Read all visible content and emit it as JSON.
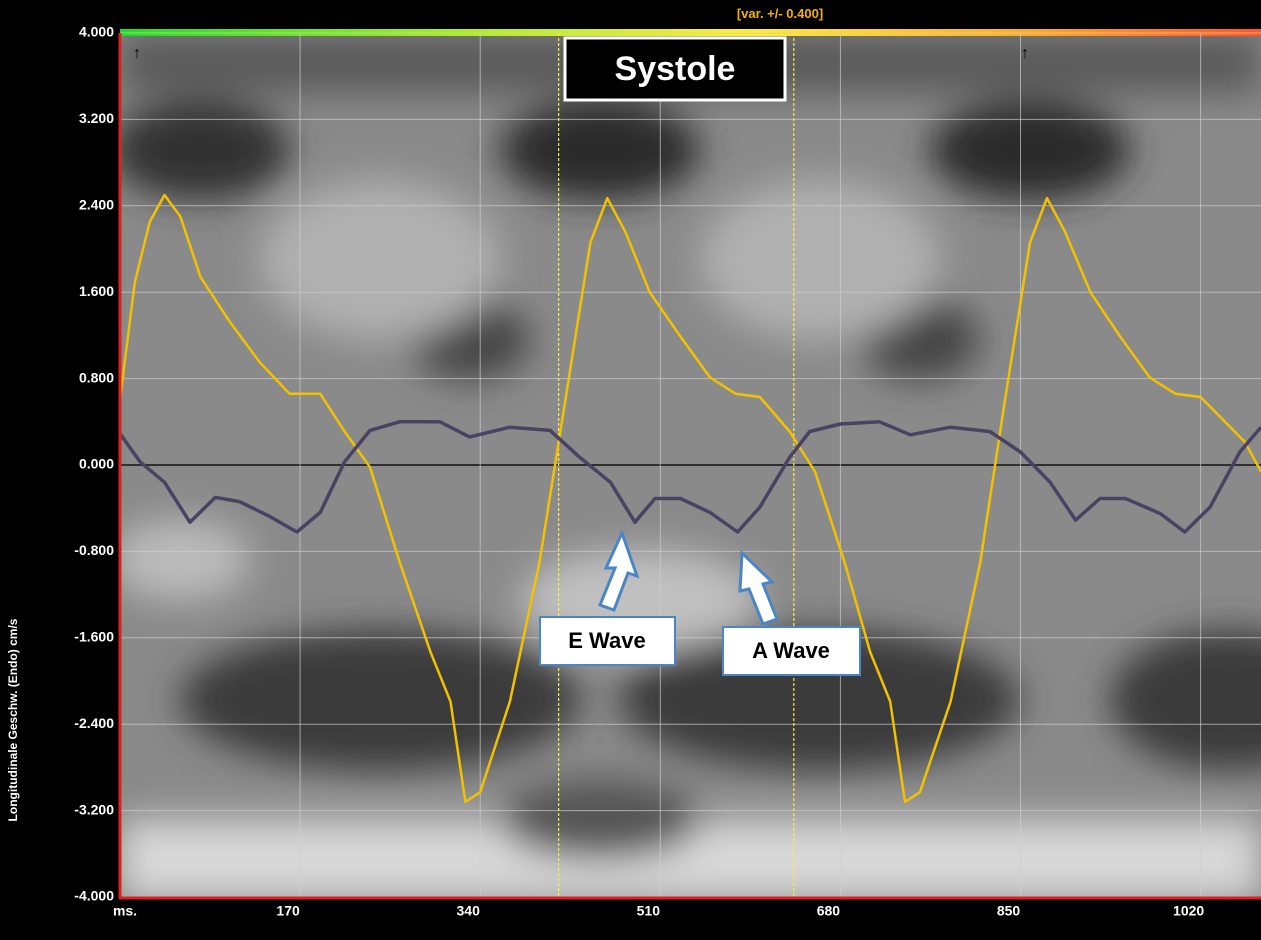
{
  "chart_data": {
    "type": "line",
    "y_label": "Longitudinale Geschw. (Endo)  cm/s",
    "x_label": "ms.",
    "annotations": [
      "[var. +/- 0.400]",
      "Systole",
      "E Wave",
      "A Wave"
    ],
    "systole_x": [
      414,
      636
    ],
    "xlim": [
      0,
      1077
    ],
    "xticks": [
      170,
      340,
      510,
      680,
      850,
      1020
    ],
    "ylim": [
      -4,
      4
    ],
    "yticks": [
      {
        "value": 4,
        "label": "4.000"
      },
      {
        "value": 3.2,
        "label": "3.200"
      },
      {
        "value": 2.4,
        "label": "2.400"
      },
      {
        "value": 1.6,
        "label": "1.600"
      },
      {
        "value": 0.8,
        "label": "0.800"
      },
      {
        "value": 0,
        "label": "0.000"
      },
      {
        "value": -0.8,
        "label": "-0.800"
      },
      {
        "value": -1.6,
        "label": "-1.600"
      },
      {
        "value": -2.4,
        "label": "-2.400"
      },
      {
        "value": -3.2,
        "label": "-3.200"
      },
      {
        "value": -4,
        "label": "-4.000"
      }
    ],
    "grid": true,
    "series": [
      {
        "color": "#f2c200",
        "x": [
          0,
          14,
          28,
          42,
          57,
          76,
          104,
          132,
          160,
          189,
          212,
          236,
          264,
          293,
          312,
          326,
          340,
          368,
          396,
          420,
          444,
          460,
          477,
          500,
          529,
          557,
          581,
          604,
          632,
          656,
          684,
          708,
          727,
          741,
          755,
          784,
          812,
          835,
          859,
          875,
          892,
          916,
          944,
          972,
          996,
          1020,
          1043,
          1062,
          1077
        ],
        "values": [
          0.61,
          1.69,
          2.25,
          2.5,
          2.3,
          1.74,
          1.32,
          0.95,
          0.66,
          0.66,
          0.31,
          -0.02,
          -0.9,
          -1.73,
          -2.19,
          -3.12,
          -3.03,
          -2.19,
          -0.9,
          0.58,
          2.06,
          2.47,
          2.16,
          1.6,
          1.19,
          0.81,
          0.66,
          0.63,
          0.31,
          -0.06,
          -0.9,
          -1.73,
          -2.19,
          -3.12,
          -3.03,
          -2.19,
          -0.9,
          0.58,
          2.06,
          2.47,
          2.16,
          1.6,
          1.19,
          0.81,
          0.66,
          0.63,
          0.4,
          0.21,
          -0.06
        ]
      },
      {
        "color": "#4a4262",
        "x": [
          0,
          19,
          42,
          66,
          90,
          113,
          142,
          167,
          189,
          212,
          236,
          264,
          302,
          330,
          368,
          406,
          434,
          463,
          486,
          505,
          529,
          557,
          583,
          604,
          632,
          651,
          680,
          717,
          746,
          784,
          821,
          850,
          878,
          902,
          925,
          949,
          982,
          1005,
          1029,
          1057,
          1077
        ],
        "values": [
          0.29,
          0.03,
          -0.16,
          -0.53,
          -0.3,
          -0.34,
          -0.48,
          -0.62,
          -0.44,
          0.03,
          0.32,
          0.4,
          0.4,
          0.26,
          0.35,
          0.32,
          0.07,
          -0.16,
          -0.53,
          -0.31,
          -0.31,
          -0.44,
          -0.62,
          -0.39,
          0.07,
          0.31,
          0.38,
          0.4,
          0.28,
          0.35,
          0.31,
          0.12,
          -0.16,
          -0.51,
          -0.31,
          -0.31,
          -0.45,
          -0.62,
          -0.39,
          0.12,
          0.35
        ]
      }
    ]
  }
}
